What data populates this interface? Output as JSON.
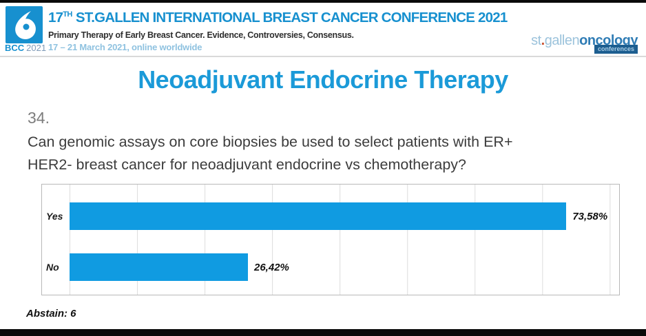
{
  "header": {
    "bcc_label": "BCC",
    "bcc_year": "2021",
    "title_num": "17",
    "title_sup": "TH",
    "title_rest": "ST.GALLEN INTERNATIONAL BREAST CANCER CONFERENCE 2021",
    "subtitle": "Primary Therapy of Early Breast Cancer. Evidence, Controversies, Consensus.",
    "dates": "17 – 21 March 2021, online worldwide",
    "org": {
      "part_st": "st",
      "dot": ".",
      "part_gallen": "gallen",
      "part_onc": "oncology",
      "part_conf": "conferences"
    }
  },
  "slide": {
    "title": "Neoadjuvant Endocrine Therapy",
    "question_number": "34.",
    "question_line1": "Can genomic assays on core biopsies be used to select patients with ER+",
    "question_line2": "HER2- breast cancer for neoadjuvant endocrine vs chemotherapy?",
    "abstain_label": "Abstain: 6"
  },
  "chart_data": {
    "type": "bar",
    "orientation": "horizontal",
    "categories": [
      "Yes",
      "No"
    ],
    "values": [
      73.58,
      26.42
    ],
    "value_labels": [
      "73,58%",
      "26,42%"
    ],
    "xlim": [
      0,
      81.4
    ],
    "gridline_interval_pct": 10,
    "grid": true,
    "legend_position": "none",
    "bar_color": "#109be1",
    "title": "",
    "xlabel": "",
    "ylabel": ""
  },
  "colors": {
    "header_blue": "#1790cf",
    "title_blue": "#1b9ad8",
    "light_blue": "#8fc2e0",
    "bar_blue": "#109be1"
  }
}
